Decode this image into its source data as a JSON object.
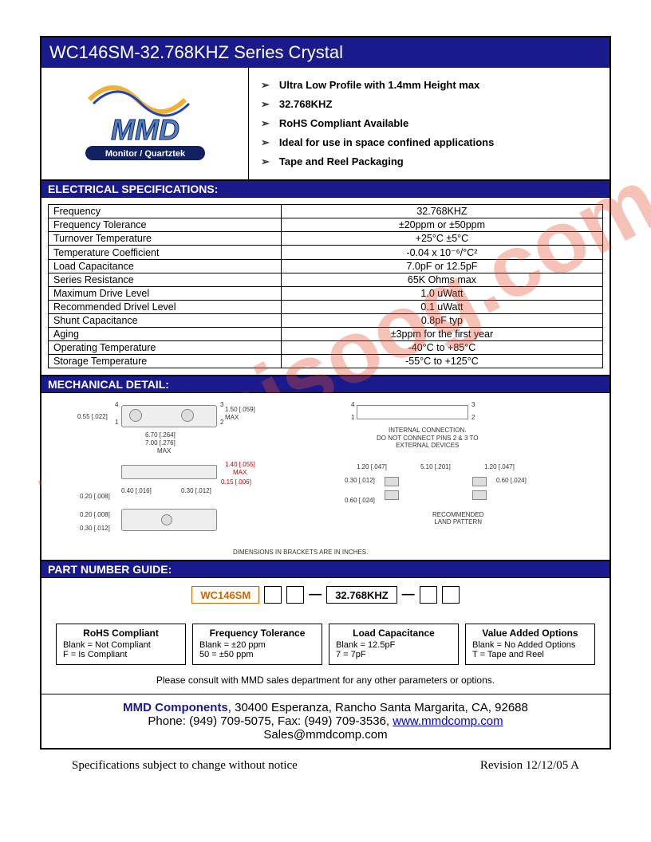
{
  "title": "WC146SM-32.768KHZ Series Crystal",
  "logo": {
    "top_text": "MMD",
    "bottom_text": "Monitor / Quartztek",
    "wave_color1": "#f0b030",
    "wave_color2": "#2040c0",
    "text_fill": "#5080c0",
    "banner_fill": "#102060"
  },
  "features": [
    "Ultra Low Profile with 1.4mm Height max",
    "32.768KHZ",
    "RoHS Compliant Available",
    "Ideal for use in space confined applications",
    "Tape and Reel Packaging"
  ],
  "section_headers": {
    "electrical": "ELECTRICAL SPECIFICATIONS:",
    "mechanical": "MECHANICAL DETAIL:",
    "part_guide": "PART NUMBER GUIDE:"
  },
  "specs": [
    {
      "label": "Frequency",
      "value": "32.768KHZ"
    },
    {
      "label": "Frequency Tolerance",
      "value": "±20ppm or ±50ppm"
    },
    {
      "label": "Turnover Temperature",
      "value": "+25°C ±5°C"
    },
    {
      "label": "Temperature Coefficient",
      "value": "-0.04 x 10⁻⁶/°C²"
    },
    {
      "label": "Load Capacitance",
      "value": "7.0pF or 12.5pF"
    },
    {
      "label": "Series Resistance",
      "value": "65K Ohms max"
    },
    {
      "label": "Maximum Drive Level",
      "value": "1.0 uWatt"
    },
    {
      "label": "Recommended Drivel Level",
      "value": "0.1 uWatt"
    },
    {
      "label": "Shunt Capacitance",
      "value": "0.8pF typ"
    },
    {
      "label": "Aging",
      "value": "±3ppm for the first year"
    },
    {
      "label": "Operating Temperature",
      "value": "-40°C to +85°C"
    },
    {
      "label": "Storage Temperature",
      "value": "-55°C to +125°C"
    }
  ],
  "mechanical": {
    "top_view": {
      "dims": [
        "0.55 [.022]",
        "6.70 [.264]",
        "7.00 [.276]",
        "1.50 [.059]"
      ],
      "labels": [
        "1",
        "2",
        "3",
        "4"
      ],
      "note_max": "MAX"
    },
    "side_view": {
      "dims": [
        "0.20 [.008]",
        "0.40 [.016]",
        "0.30 [.012]",
        "1.40 [.055]",
        "0.15 [.006]"
      ],
      "note_max": "MAX"
    },
    "bottom_view": {
      "dims": [
        "0.20 [.008]",
        "0.30 [.012]"
      ]
    },
    "schematic": {
      "labels": [
        "1",
        "2",
        "3",
        "4"
      ],
      "note": "INTERNAL CONNECTION.\nDO NOT CONNECT PINS 2 & 3 TO\nEXTERNAL DEVICES"
    },
    "land_pattern": {
      "dims": [
        "1.20 [.047]",
        "0.30 [.012]",
        "5.10 [.201]",
        "1.20 [.047]",
        "0.60 [.024]",
        "0.60 [.024]"
      ],
      "note": "RECOMMENDED\nLAND PATTERN"
    },
    "footnote": "DIMENSIONS IN BRACKETS ARE IN INCHES."
  },
  "part_number": {
    "segments": [
      "WC146SM",
      "",
      "",
      "32.768KHZ",
      "",
      ""
    ],
    "options": [
      {
        "title": "RoHS Compliant",
        "lines": [
          "Blank = Not Compliant",
          "F = Is Compliant"
        ]
      },
      {
        "title": "Frequency Tolerance",
        "lines": [
          "Blank = ±20 ppm",
          "50 = ±50 ppm"
        ]
      },
      {
        "title": "Load Capacitance",
        "lines": [
          "Blank = 12.5pF",
          "7 = 7pF"
        ]
      },
      {
        "title": "Value Added Options",
        "lines": [
          "Blank = No Added Options",
          "T = Tape and Reel"
        ]
      }
    ],
    "consult": "Please consult with MMD sales department for any other parameters or options."
  },
  "footer": {
    "company": "MMD Components",
    "address": ", 30400 Esperanza, Rancho Santa Margarita, CA, 92688",
    "phone_line": "Phone: (949) 709-5075, Fax: (949) 709-3536,   ",
    "url": "www.mmdcomp.com",
    "email": "Sales@mmdcomp.com"
  },
  "bottom": {
    "left": "Specifications subject to change without notice",
    "right": "Revision 12/12/05 A"
  },
  "watermark": "isee.sisoog.com",
  "colors": {
    "header_bg": "#1a1a8c",
    "header_fg": "#ffffff",
    "border": "#000000"
  }
}
